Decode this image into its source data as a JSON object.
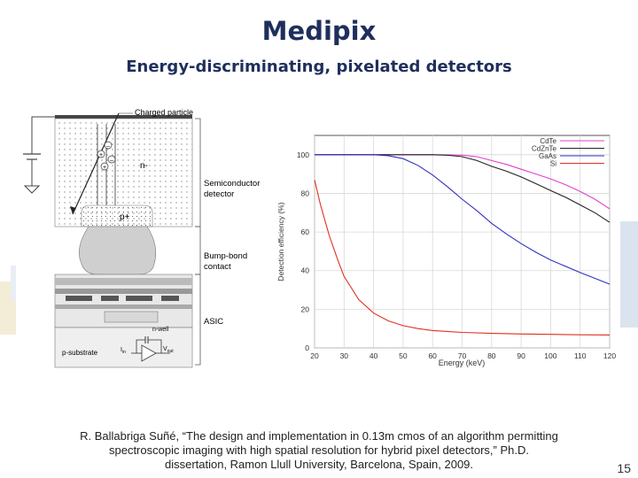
{
  "slide": {
    "title": "Medipix",
    "subtitle": "Energy-discriminating, pixelated detectors",
    "citation": {
      "line1": "R. Ballabriga Suñé, “The design and implementation in 0.13m cmos of an algorithm permitting",
      "line2": "spectroscopic imaging with high spatial resolution for hybrid pixel detectors,” Ph.D.",
      "line3": "dissertation, Ramon Llull University, Barcelona, Spain, 2009."
    },
    "page_number": "15"
  },
  "diagram": {
    "labels": {
      "charged_particle": "Charged particle",
      "n_minus": "n-",
      "p_plus": "p+",
      "semiconductor_1": "Semiconductor",
      "semiconductor_2": "detector",
      "bump_1": "Bump-bond",
      "bump_2": "contact",
      "asic": "ASIC",
      "n_well": "n-well",
      "p_substrate": "p-substrate",
      "i_in": "I",
      "i_in_sub": "in",
      "v_out": "V",
      "v_out_sub": "out"
    }
  },
  "chart_data": {
    "type": "line",
    "xlabel": "Energy (keV)",
    "ylabel": "Detection efficiency (%)",
    "xlim": [
      20,
      120
    ],
    "ylim": [
      0,
      110
    ],
    "xticks": [
      "20",
      "30",
      "40",
      "50",
      "60",
      "70",
      "80",
      "90",
      "100",
      "110",
      "120"
    ],
    "yticks": [
      "0",
      "20",
      "40",
      "60",
      "80",
      "100"
    ],
    "legend_position": "top-right",
    "series": [
      {
        "name": "CdTe",
        "color": "#e040d0",
        "x": [
          20,
          40,
          60,
          70,
          75,
          80,
          85,
          90,
          95,
          100,
          105,
          110,
          115,
          120
        ],
        "y": [
          100,
          100,
          100,
          99.8,
          99,
          97,
          95,
          92.5,
          90,
          87.5,
          84.5,
          81,
          77,
          72
        ]
      },
      {
        "name": "CdZnTe",
        "color": "#222222",
        "x": [
          20,
          40,
          60,
          65,
          70,
          75,
          80,
          85,
          90,
          95,
          100,
          105,
          110,
          115,
          120
        ],
        "y": [
          100,
          100,
          100,
          99.8,
          99,
          97,
          94,
          91.5,
          88.5,
          85,
          81.5,
          78,
          74,
          70,
          65
        ]
      },
      {
        "name": "GaAs",
        "color": "#3030c0",
        "x": [
          20,
          30,
          40,
          45,
          50,
          55,
          60,
          65,
          70,
          75,
          80,
          85,
          90,
          95,
          100,
          110,
          120
        ],
        "y": [
          100,
          100,
          100,
          99.5,
          98,
          94.5,
          89.5,
          83.5,
          77,
          71,
          64.5,
          59,
          54,
          49.5,
          45.5,
          39,
          33
        ]
      },
      {
        "name": "Si",
        "color": "#e03020",
        "x": [
          20,
          22,
          25,
          28,
          30,
          35,
          40,
          45,
          50,
          55,
          60,
          70,
          80,
          90,
          100,
          110,
          120
        ],
        "y": [
          87,
          74,
          58,
          45,
          37,
          25,
          18,
          14,
          11.5,
          10,
          9,
          8,
          7.5,
          7.2,
          7,
          6.8,
          6.7
        ]
      }
    ]
  }
}
